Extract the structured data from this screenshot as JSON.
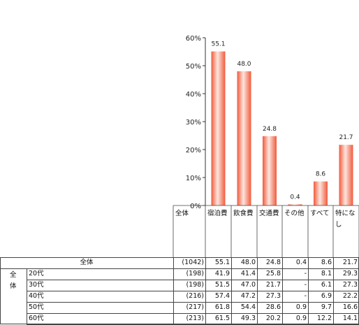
{
  "chart_data": {
    "type": "bar",
    "categories": [
      "宿泊費",
      "飲食費",
      "交通費",
      "その他",
      "すべて",
      "特になし"
    ],
    "category_lines": [
      [
        "宿泊費"
      ],
      [
        "飲食費"
      ],
      [
        "交通費"
      ],
      [
        "その他"
      ],
      [
        "すべて"
      ],
      [
        "特にな",
        "し"
      ]
    ],
    "values": [
      55.1,
      48.0,
      24.8,
      0.4,
      8.6,
      21.7
    ],
    "ylim": [
      0,
      60
    ],
    "yticks": [
      "0%",
      "10%",
      "20%",
      "30%",
      "40%",
      "50%",
      "60%"
    ],
    "series_label": "全体",
    "bar_color": "#f05a3c",
    "grid": false
  },
  "table": {
    "overall": {
      "label": "全体",
      "n": "(1042)",
      "values": [
        "55.1",
        "48.0",
        "24.8",
        "0.4",
        "8.6",
        "21.7"
      ]
    },
    "group_label_chars": [
      "全",
      "体"
    ],
    "rows": [
      {
        "label": "20代",
        "n": "(198)",
        "values": [
          "41.9",
          "41.4",
          "25.8",
          "-",
          "8.1",
          "29.3"
        ]
      },
      {
        "label": "30代",
        "n": "(198)",
        "values": [
          "51.5",
          "47.0",
          "21.7",
          "-",
          "6.1",
          "27.3"
        ]
      },
      {
        "label": "40代",
        "n": "(216)",
        "values": [
          "57.4",
          "47.2",
          "27.3",
          "-",
          "6.9",
          "22.2"
        ]
      },
      {
        "label": "50代",
        "n": "(217)",
        "values": [
          "61.8",
          "54.4",
          "28.6",
          "0.9",
          "9.7",
          "16.6"
        ]
      },
      {
        "label": "60代",
        "n": "(213)",
        "values": [
          "61.5",
          "49.3",
          "20.2",
          "0.9",
          "12.2",
          "14.1"
        ]
      }
    ]
  }
}
